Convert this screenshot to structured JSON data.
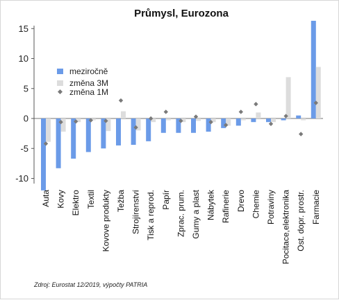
{
  "chart_data": {
    "type": "bar",
    "title": "Průmysl, Eurozona",
    "source": "Zdroj: Eurostat 12/2019, výpočty PATRIA",
    "ylim": [
      -12.5,
      16.5
    ],
    "yticks": [
      "15",
      "10",
      "5",
      "0",
      "-5",
      "-10"
    ],
    "ytick_values": [
      15,
      10,
      5,
      0,
      -5,
      -10
    ],
    "grid": false,
    "legend_position": "upper-left",
    "categories": [
      "Auta",
      "Kovy",
      "Elektro",
      "Textil",
      "Kovove produkty",
      "Težba",
      "Strojírenství",
      "Tisk a reprod.",
      "Papír",
      "Zprac. prum.",
      "Gumy a plast",
      "Nábytek",
      "Rafinerie",
      "Drevo",
      "Chemie",
      "Potraviny",
      "Pocitace,elektronika",
      "Ost. dopr. prostr.",
      "Farmacie"
    ],
    "series": [
      {
        "name": "meziročně",
        "kind": "bar",
        "color": "#6b9be8",
        "values": [
          -12.0,
          -8.3,
          -6.7,
          -5.6,
          -5.0,
          -4.5,
          -4.4,
          -3.8,
          -2.4,
          -2.4,
          -2.4,
          -2.2,
          -1.6,
          -1.2,
          -0.6,
          -0.6,
          -0.3,
          0.5,
          16.3
        ]
      },
      {
        "name": "změna 3M",
        "kind": "bar",
        "color": "#dddddd",
        "values": [
          -3.9,
          -2.2,
          -0.6,
          -0.3,
          -2.1,
          1.2,
          -2.0,
          -0.6,
          -0.3,
          -0.6,
          -0.4,
          -0.6,
          -1.2,
          -0.3,
          1.0,
          -0.6,
          6.9,
          -0.3,
          8.6
        ]
      },
      {
        "name": "změna 1M",
        "kind": "point",
        "color": "#7a7a7a",
        "values": [
          -4.2,
          -0.6,
          -0.5,
          -0.3,
          -0.4,
          3.0,
          -1.5,
          0.0,
          1.1,
          -0.4,
          0.3,
          -0.6,
          -1.1,
          1.1,
          2.4,
          -0.9,
          0.4,
          -2.6,
          2.6
        ]
      }
    ]
  }
}
